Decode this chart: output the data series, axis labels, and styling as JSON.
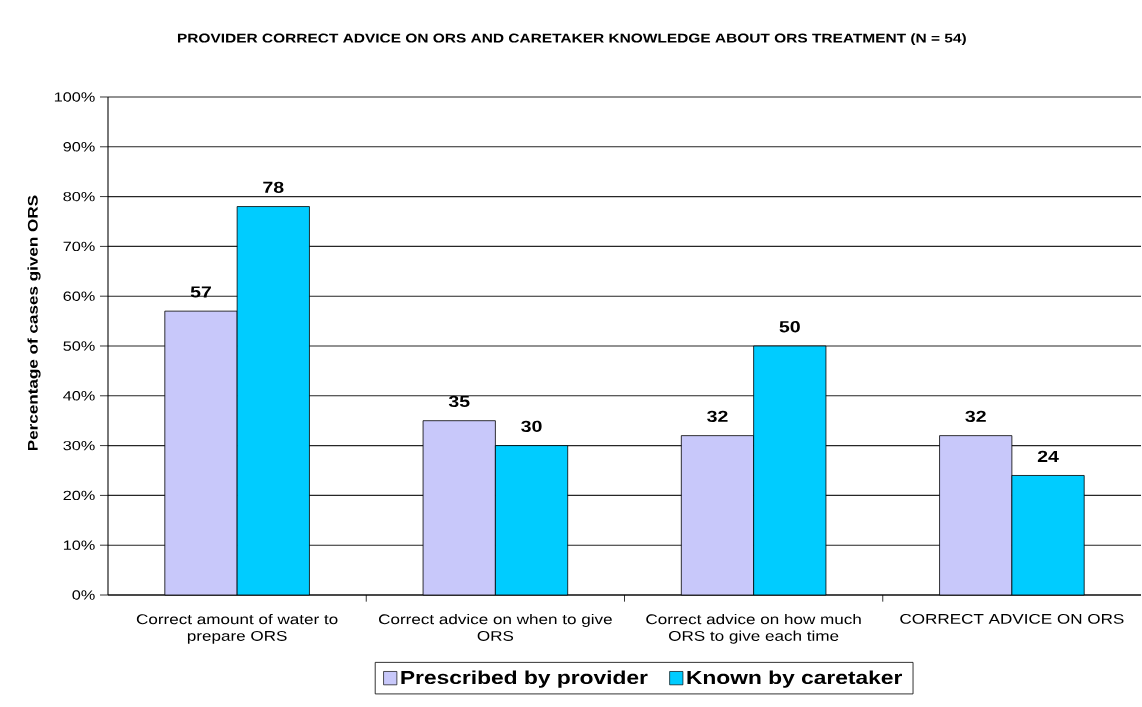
{
  "chart_data": {
    "type": "bar",
    "title": "PROVIDER CORRECT ADVICE ON ORS AND CARETAKER KNOWLEDGE ABOUT ORS TREATMENT (N = 54)",
    "ylabel": "Percentage of cases given ORS",
    "categories": [
      "Correct amount of water to prepare ORS",
      "Correct advice on when to give ORS",
      "Correct advice on how much ORS to give each time",
      "CORRECT ADVICE ON ORS"
    ],
    "series": [
      {
        "name": "Prescribed by provider",
        "color": "#c8c8fa",
        "values": [
          57,
          35,
          32,
          32
        ]
      },
      {
        "name": "Known by caretaker",
        "color": "#00ccff",
        "values": [
          78,
          30,
          50,
          24
        ]
      }
    ],
    "ylim": [
      0,
      100
    ],
    "yticks": [
      {
        "value": 0,
        "label": "0%"
      },
      {
        "value": 10,
        "label": "10%"
      },
      {
        "value": 20,
        "label": "20%"
      },
      {
        "value": 30,
        "label": "30%"
      },
      {
        "value": 40,
        "label": "40%"
      },
      {
        "value": 50,
        "label": "50%"
      },
      {
        "value": 60,
        "label": "60%"
      },
      {
        "value": 70,
        "label": "70%"
      },
      {
        "value": 80,
        "label": "80%"
      },
      {
        "value": 90,
        "label": "90%"
      },
      {
        "value": 100,
        "label": "100%"
      }
    ],
    "grid": "y",
    "legend": "bottom",
    "data_labels": true
  }
}
